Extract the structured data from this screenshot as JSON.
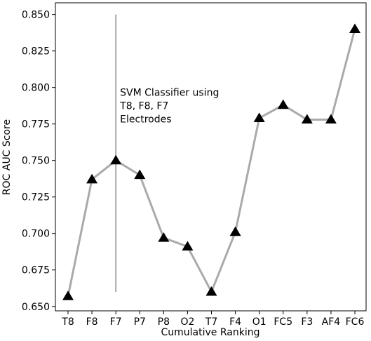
{
  "chart_data": {
    "type": "line",
    "title": "",
    "xlabel": "Cumulative Ranking",
    "ylabel": "ROC AUC Score",
    "categories": [
      "T8",
      "F8",
      "F7",
      "P7",
      "P8",
      "O2",
      "T7",
      "F4",
      "O1",
      "FC5",
      "F3",
      "AF4",
      "FC6"
    ],
    "series": [
      {
        "values": [
          0.657,
          0.737,
          0.75,
          0.74,
          0.697,
          0.691,
          0.66,
          0.701,
          0.779,
          0.788,
          0.778,
          0.778,
          0.84
        ]
      }
    ],
    "ylim": [
      0.647,
      0.858
    ],
    "yticks": [
      0.65,
      0.675,
      0.7,
      0.725,
      0.75,
      0.775,
      0.8,
      0.825,
      0.85
    ],
    "ytick_labels": [
      "0.650",
      "0.675",
      "0.700",
      "0.725",
      "0.750",
      "0.775",
      "0.800",
      "0.825",
      "0.850"
    ],
    "grid": false,
    "line_color": "#aaaaaa",
    "marker": "triangle",
    "marker_color": "#000000",
    "vline": {
      "category": "F7",
      "from": 0.66,
      "to": 0.85,
      "color": "#aaaaaa"
    },
    "annotation": {
      "lines": [
        "SVM Classifier using",
        "T8, F8, F7",
        "Electrodes"
      ],
      "anchor_category": "F7",
      "anchor_value": 0.8
    }
  }
}
